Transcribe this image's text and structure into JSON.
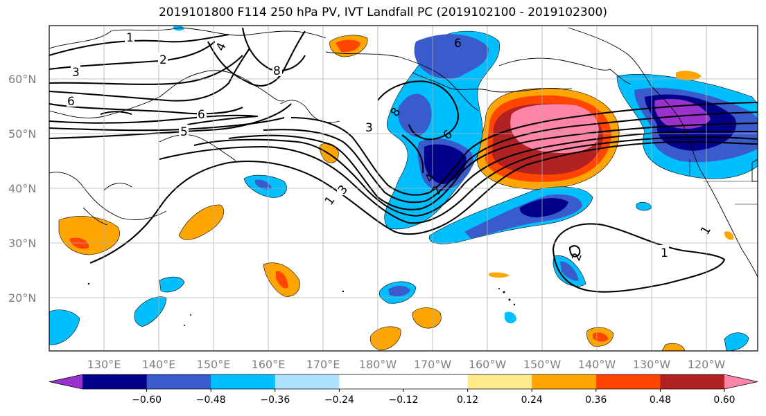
{
  "title": "2019101800 F114 250 hPa PV, IVT Landfall PC (2019102100 - 2019102300)",
  "lat_labels": [
    "60°N",
    "50°N",
    "40°N",
    "30°N",
    "20°N"
  ],
  "lon_labels": [
    "130°E",
    "140°E",
    "150°E",
    "160°E",
    "170°E",
    "180°W",
    "170°W",
    "160°W",
    "150°W",
    "140°W",
    "130°W",
    "120°W"
  ],
  "colorbar": {
    "colors": [
      "#9932cc",
      "#00008b",
      "#3a5bcc",
      "#00bfff",
      "#afe2ff",
      "#ffffff",
      "#ffffff",
      "#ffe98a",
      "#ffa500",
      "#ff4500",
      "#b22222",
      "#ff85a8"
    ],
    "ticks": [
      "−0.60",
      "−0.48",
      "−0.36",
      "−0.24",
      "−0.12",
      "0.12",
      "0.24",
      "0.36",
      "0.48",
      "0.60"
    ]
  },
  "contour_labels": [
    "1",
    "2",
    "3",
    "4",
    "6",
    "8",
    "6",
    "5",
    "6",
    "3",
    "8",
    "6",
    "3",
    "4",
    "2",
    "1",
    "2",
    "1",
    "1"
  ],
  "shading_colors": {
    "pos_light": "#ffe98a",
    "pos_orange": "#ffa500",
    "pos_red": "#ff4500",
    "pos_dark": "#b22222",
    "pos_pink": "#ff85a8",
    "neg_light": "#afe2ff",
    "neg_cyan": "#00bfff",
    "neg_blue": "#3a5bcc",
    "neg_navy": "#00008b",
    "neg_purple": "#9932cc"
  }
}
